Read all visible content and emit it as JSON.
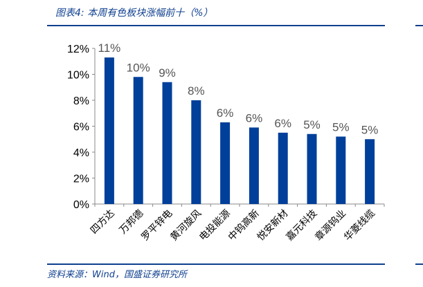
{
  "header": {
    "title": "图表4:  本周有色板块涨幅前十（%）"
  },
  "footer": {
    "source": "资料来源：Wind，国盛证券研究所"
  },
  "colors": {
    "bar": "#003f9a",
    "brand": "#0e3f8f"
  },
  "chart_data": {
    "type": "bar",
    "categories": [
      "四方达",
      "万邦德",
      "罗平锌电",
      "黄河旋风",
      "电投能源",
      "中钨高新",
      "悦安新材",
      "嘉元科技",
      "章源钨业",
      "华菱线缆"
    ],
    "values": [
      11.3,
      9.8,
      9.4,
      8.0,
      6.3,
      5.9,
      5.5,
      5.4,
      5.2,
      5.0
    ],
    "data_labels": [
      "11%",
      "10%",
      "9%",
      "8%",
      "6%",
      "6%",
      "6%",
      "5%",
      "5%",
      "5%"
    ],
    "ylim": [
      0,
      12
    ],
    "yticks": [
      "0%",
      "2%",
      "4%",
      "6%",
      "8%",
      "10%",
      "12%"
    ],
    "grid": false,
    "xlabel": "",
    "ylabel": ""
  }
}
